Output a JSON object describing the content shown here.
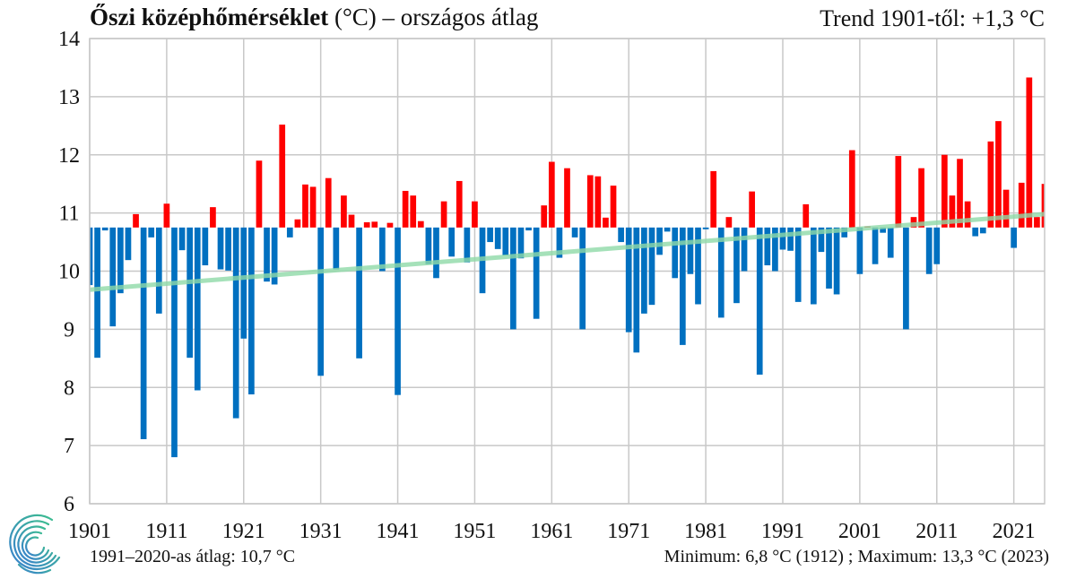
{
  "colors": {
    "positive": "#ff0000",
    "negative": "#0070c0",
    "trend": "#8fd9a8",
    "grid": "#c8c8c8",
    "logo_start": "#3cc28a",
    "logo_end": "#3a7fd0"
  },
  "header": {
    "title_bold": "Őszi középhőmérséklet",
    "title_rest": " (°C) – országos átlag",
    "trend_text": "Trend 1901-től: +1,3 °C"
  },
  "footer": {
    "reference_text": "1991–2020-as átlag:  10,7 °C",
    "extremes_text": "Minimum:  6,8 °C (1912)  ; Maximum:  13,3 °C (2023)"
  },
  "chart_data": {
    "type": "bar",
    "title": "Őszi középhőmérséklet (°C) – országos átlag",
    "xlabel": "",
    "ylabel": "",
    "baseline": 10.75,
    "reference_mean": 10.7,
    "ylim": [
      6,
      14
    ],
    "yticks": [
      6,
      7,
      8,
      9,
      10,
      11,
      12,
      13,
      14
    ],
    "xlim": [
      1901,
      2025
    ],
    "xticks": [
      1901,
      1911,
      1921,
      1931,
      1941,
      1951,
      1961,
      1971,
      1981,
      1991,
      2001,
      2011,
      2021
    ],
    "grid": true,
    "trend": {
      "start_year": 1901,
      "start_value": 9.68,
      "end_year": 2025,
      "end_value": 10.98
    },
    "start_year": 1901,
    "values": [
      9.76,
      8.51,
      10.7,
      9.05,
      9.62,
      10.19,
      10.98,
      7.11,
      10.58,
      9.27,
      11.16,
      6.8,
      10.36,
      8.51,
      7.95,
      10.1,
      11.1,
      10.03,
      10.01,
      7.47,
      8.84,
      7.88,
      11.9,
      9.82,
      9.77,
      12.52,
      10.58,
      10.89,
      11.49,
      11.45,
      8.2,
      11.6,
      10.03,
      11.3,
      10.97,
      8.5,
      10.84,
      10.85,
      10.0,
      10.83,
      7.87,
      11.38,
      11.3,
      10.86,
      10.12,
      9.88,
      11.2,
      10.25,
      11.55,
      10.15,
      11.2,
      9.62,
      10.5,
      10.38,
      10.27,
      9.0,
      10.22,
      10.7,
      9.18,
      11.13,
      11.88,
      10.23,
      11.77,
      10.58,
      9.0,
      11.65,
      11.63,
      10.92,
      11.47,
      10.5,
      8.95,
      8.6,
      9.27,
      9.42,
      10.28,
      10.68,
      9.88,
      8.73,
      9.95,
      9.43,
      10.72,
      11.72,
      9.2,
      10.93,
      9.45,
      10.0,
      11.37,
      8.22,
      10.1,
      10.0,
      10.37,
      10.35,
      9.47,
      11.15,
      9.43,
      10.33,
      9.7,
      9.6,
      10.58,
      12.08,
      9.95,
      10.77,
      10.12,
      10.66,
      10.23,
      11.98,
      9.0,
      10.93,
      11.77,
      9.95,
      10.12,
      12.0,
      11.3,
      11.93,
      11.2,
      10.6,
      10.65,
      12.23,
      12.58,
      11.4,
      10.4,
      11.52,
      13.33,
      10.93,
      11.5
    ]
  }
}
